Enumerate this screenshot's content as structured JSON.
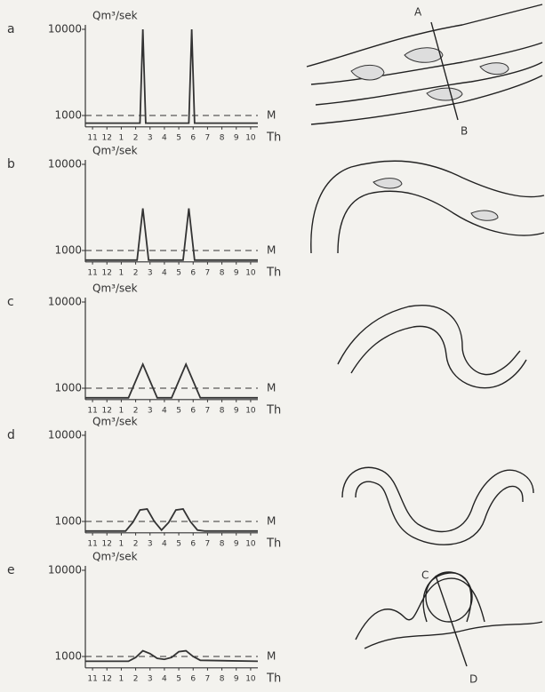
{
  "chart_data": [
    {
      "type": "line",
      "panel": "a",
      "ylabel": "Qm³/sek",
      "xlabel": "Th",
      "x": [
        0,
        3.8,
        4.0,
        4.2,
        7.2,
        7.4,
        7.6,
        12
      ],
      "values": [
        200,
        200,
        10000,
        200,
        200,
        10000,
        200,
        200
      ],
      "xlim": [
        0,
        12
      ],
      "ylim": [
        0,
        10500
      ],
      "yticks": [
        1000,
        10000
      ],
      "xticks": [
        {
          "value": 0.5,
          "label": "11"
        },
        {
          "value": 1.5,
          "label": "12"
        },
        {
          "value": 2.5,
          "label": "1"
        },
        {
          "value": 3.5,
          "label": "2"
        },
        {
          "value": 4.5,
          "label": "3"
        },
        {
          "value": 5.5,
          "label": "4"
        },
        {
          "value": 6.5,
          "label": "5"
        },
        {
          "value": 7.5,
          "label": "6"
        },
        {
          "value": 8.5,
          "label": "7"
        },
        {
          "value": 9.5,
          "label": "8"
        },
        {
          "value": 10.5,
          "label": "9"
        },
        {
          "value": 11.5,
          "label": "10"
        }
      ],
      "reference_line": {
        "value": 1000,
        "label": "M"
      },
      "color": "#333333"
    },
    {
      "type": "line",
      "panel": "b",
      "ylabel": "Qm³/sek",
      "xlabel": "Th",
      "x": [
        0,
        3.6,
        4.0,
        4.4,
        6.8,
        7.2,
        7.6,
        12
      ],
      "values": [
        0,
        0,
        5400,
        0,
        0,
        5400,
        0,
        0
      ],
      "xlim": [
        0,
        12
      ],
      "ylim": [
        0,
        10500
      ],
      "yticks": [
        1000,
        10000
      ],
      "xticks": [
        {
          "value": 0.5,
          "label": "11"
        },
        {
          "value": 1.5,
          "label": "12"
        },
        {
          "value": 2.5,
          "label": "1"
        },
        {
          "value": 3.5,
          "label": "2"
        },
        {
          "value": 4.5,
          "label": "3"
        },
        {
          "value": 5.5,
          "label": "4"
        },
        {
          "value": 6.5,
          "label": "5"
        },
        {
          "value": 7.5,
          "label": "6"
        },
        {
          "value": 8.5,
          "label": "7"
        },
        {
          "value": 9.5,
          "label": "8"
        },
        {
          "value": 10.5,
          "label": "9"
        },
        {
          "value": 11.5,
          "label": "10"
        }
      ],
      "reference_line": {
        "value": 1000,
        "label": "M"
      },
      "color": "#333333"
    },
    {
      "type": "line",
      "panel": "c",
      "ylabel": "Qm³/sek",
      "xlabel": "Th",
      "x": [
        0,
        3.0,
        4.0,
        5.0,
        6.0,
        7.0,
        8.0,
        12
      ],
      "values": [
        0,
        0,
        3500,
        0,
        0,
        3500,
        0,
        0
      ],
      "xlim": [
        0,
        12
      ],
      "ylim": [
        0,
        10500
      ],
      "yticks": [
        1000,
        10000
      ],
      "xticks": [
        {
          "value": 0.5,
          "label": "11"
        },
        {
          "value": 1.5,
          "label": "12"
        },
        {
          "value": 2.5,
          "label": "1"
        },
        {
          "value": 3.5,
          "label": "2"
        },
        {
          "value": 4.5,
          "label": "3"
        },
        {
          "value": 5.5,
          "label": "4"
        },
        {
          "value": 6.5,
          "label": "5"
        },
        {
          "value": 7.5,
          "label": "6"
        },
        {
          "value": 8.5,
          "label": "7"
        },
        {
          "value": 9.5,
          "label": "8"
        },
        {
          "value": 10.5,
          "label": "9"
        },
        {
          "value": 11.5,
          "label": "10"
        }
      ],
      "reference_line": {
        "value": 1000,
        "label": "M"
      },
      "color": "#333333"
    },
    {
      "type": "line",
      "panel": "d",
      "ylabel": "Qm³/sek",
      "xlabel": "Th",
      "x": [
        0,
        2.8,
        3.3,
        3.8,
        4.3,
        4.8,
        5.3,
        5.8,
        6.3,
        6.8,
        7.3,
        7.8,
        8.3,
        12
      ],
      "values": [
        0,
        0,
        900,
        2200,
        2300,
        1000,
        100,
        900,
        2200,
        2300,
        1000,
        100,
        0,
        0
      ],
      "xlim": [
        0,
        12
      ],
      "ylim": [
        0,
        10500
      ],
      "yticks": [
        1000,
        10000
      ],
      "xticks": [
        {
          "value": 0.5,
          "label": "11"
        },
        {
          "value": 1.5,
          "label": "12"
        },
        {
          "value": 2.5,
          "label": "1"
        },
        {
          "value": 3.5,
          "label": "2"
        },
        {
          "value": 4.5,
          "label": "3"
        },
        {
          "value": 5.5,
          "label": "4"
        },
        {
          "value": 6.5,
          "label": "5"
        },
        {
          "value": 7.5,
          "label": "6"
        },
        {
          "value": 8.5,
          "label": "7"
        },
        {
          "value": 9.5,
          "label": "8"
        },
        {
          "value": 10.5,
          "label": "9"
        },
        {
          "value": 11.5,
          "label": "10"
        }
      ],
      "reference_line": {
        "value": 1000,
        "label": "M"
      },
      "color": "#333333"
    },
    {
      "type": "line",
      "panel": "e",
      "ylabel": "Qm³/sek",
      "xlabel": "Th",
      "x": [
        0,
        3.0,
        3.5,
        4.0,
        4.5,
        5.0,
        5.5,
        6.0,
        6.5,
        7.0,
        7.5,
        8.0,
        12
      ],
      "values": [
        500,
        500,
        900,
        1600,
        1300,
        800,
        700,
        900,
        1500,
        1600,
        1000,
        600,
        500
      ],
      "xlim": [
        0,
        12
      ],
      "ylim": [
        0,
        10500
      ],
      "yticks": [
        1000,
        10000
      ],
      "xticks": [
        {
          "value": 0.5,
          "label": "11"
        },
        {
          "value": 1.5,
          "label": "12"
        },
        {
          "value": 2.5,
          "label": "1"
        },
        {
          "value": 3.5,
          "label": "2"
        },
        {
          "value": 4.5,
          "label": "3"
        },
        {
          "value": 5.5,
          "label": "4"
        },
        {
          "value": 6.5,
          "label": "5"
        },
        {
          "value": 7.5,
          "label": "6"
        },
        {
          "value": 8.5,
          "label": "7"
        },
        {
          "value": 9.5,
          "label": "8"
        },
        {
          "value": 10.5,
          "label": "9"
        },
        {
          "value": 11.5,
          "label": "10"
        }
      ],
      "reference_line": {
        "value": 1000,
        "label": "M"
      },
      "color": "#333333"
    }
  ],
  "sketch_labels": [
    "A",
    "B",
    "C",
    "D"
  ]
}
